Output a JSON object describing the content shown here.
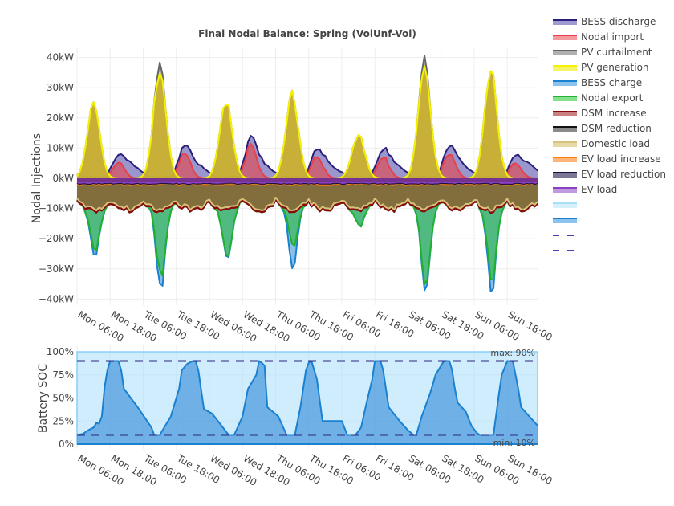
{
  "chart_data": [
    {
      "type": "area",
      "title": "Final Nodal Balance: Spring (VolUnf-Vol)",
      "xlabel": "",
      "ylabel": "Nodal Injections",
      "ylim": [
        -42,
        42
      ],
      "y_unit": "kW",
      "yticks": [
        -40,
        -30,
        -20,
        -10,
        0,
        10,
        20,
        30,
        40
      ],
      "ytick_labels": [
        "−40kW",
        "−30kW",
        "−20kW",
        "−10kW",
        "0kW",
        "10kW",
        "20kW",
        "30kW",
        "40kW"
      ],
      "x_start_hour": 0,
      "x_end_hour": 167,
      "x_step_hours": 1,
      "xticks_hours": [
        0,
        12,
        24,
        36,
        48,
        60,
        72,
        84,
        96,
        108,
        120,
        132,
        144,
        156
      ],
      "xtick_labels": [
        "Mon 06:00",
        "Mon 18:00",
        "Tue 06:00",
        "Tue 18:00",
        "Wed 06:00",
        "Wed 18:00",
        "Thu 06:00",
        "Thu 18:00",
        "Fri 06:00",
        "Fri 18:00",
        "Sat 06:00",
        "Sat 18:00",
        "Sun 06:00",
        "Sun 18:00"
      ],
      "grid": true,
      "legend_position": "right",
      "day_profile": {
        "pv_peaks_kW": [
          24.5,
          35.5,
          25.5,
          27.5,
          14.5,
          36.0,
          36.0
        ],
        "pv_curtail_peaks_kW": [
          0,
          39.0,
          0,
          0,
          0,
          39.5,
          0
        ],
        "export_troughs_kW": [
          -22,
          -31,
          -25,
          -20,
          -14,
          -34,
          -32
        ],
        "bess_charge_troughs_kW": [
          -24,
          -35.5,
          -25.5,
          -28,
          -12.5,
          -36,
          -36
        ],
        "domestic_load_troughs_kW": [
          -9,
          -10,
          -8,
          -8,
          -9,
          -10,
          -10
        ],
        "evening_import_kW": [
          5.5,
          8.5,
          10.5,
          7.0,
          7.0,
          8.0,
          5.0
        ]
      },
      "series": [
        {
          "name": "BESS discharge",
          "color": "#2a1f7a",
          "fill": "rgba(120,115,190,0.75)",
          "side": "pos"
        },
        {
          "name": "Nodal import",
          "color": "#e8404a",
          "fill": "rgba(220,80,90,0.7)",
          "side": "pos"
        },
        {
          "name": "PV curtailment",
          "color": "#666666",
          "fill": "rgba(150,150,150,0.75)",
          "side": "pos"
        },
        {
          "name": "PV generation",
          "color": "#f5f200",
          "fill": "rgba(200,175,50,0.95)",
          "side": "pos"
        },
        {
          "name": "BESS charge",
          "color": "#1a80d0",
          "fill": "rgba(110,175,230,0.8)",
          "side": "neg"
        },
        {
          "name": "Nodal export",
          "color": "#22b030",
          "fill": "rgba(70,185,110,0.85)",
          "side": "neg"
        },
        {
          "name": "DSM increase",
          "color": "#8a0a0a",
          "fill": "rgba(160,60,60,0.75)",
          "side": "neg"
        },
        {
          "name": "DSM reduction",
          "color": "#111111",
          "fill": "rgba(60,60,60,0.8)",
          "side": "neg"
        },
        {
          "name": "Domestic load",
          "color": "#d6c27a",
          "fill": "rgba(130,112,60,0.95)",
          "side": "neg"
        },
        {
          "name": "EV load increase",
          "color": "#ff7f0e",
          "fill": "rgba(255,150,60,0.7)",
          "side": "neg"
        },
        {
          "name": "EV load reduction",
          "color": "#1a1040",
          "fill": "rgba(60,50,90,0.8)",
          "side": "neg"
        },
        {
          "name": "EV load",
          "color": "#8a40c0",
          "fill": "rgba(120,50,150,0.9)",
          "side": "neg"
        }
      ]
    },
    {
      "type": "area",
      "title": "",
      "xlabel": "",
      "ylabel": "Battery SOC",
      "ylim": [
        0,
        100
      ],
      "yticks": [
        0,
        25,
        50,
        75,
        100
      ],
      "ytick_labels": [
        "0%",
        "25%",
        "50%",
        "75%",
        "100%"
      ],
      "xtick_labels": [
        "Mon 06:00",
        "Mon 18:00",
        "Tue 06:00",
        "Tue 18:00",
        "Wed 06:00",
        "Wed 18:00",
        "Thu 06:00",
        "Thu 18:00",
        "Fri 06:00",
        "Fri 18:00",
        "Sat 06:00",
        "Sat 18:00",
        "Sun 06:00",
        "Sun 18:00"
      ],
      "xticks_hours": [
        0,
        12,
        24,
        36,
        48,
        60,
        72,
        84,
        96,
        108,
        120,
        132,
        144,
        156
      ],
      "grid": true,
      "soc_series": {
        "name": "Battery SOC",
        "color": "#1a80d0",
        "points": [
          [
            0,
            10
          ],
          [
            2,
            11
          ],
          [
            4,
            15
          ],
          [
            6,
            18
          ],
          [
            7,
            23
          ],
          [
            8,
            22
          ],
          [
            9,
            30
          ],
          [
            10,
            62
          ],
          [
            11,
            80
          ],
          [
            12,
            90
          ],
          [
            15,
            90
          ],
          [
            16,
            80
          ],
          [
            17,
            60
          ],
          [
            22,
            40
          ],
          [
            27,
            18
          ],
          [
            28,
            10
          ],
          [
            30,
            10
          ],
          [
            34,
            30
          ],
          [
            37,
            60
          ],
          [
            38,
            80
          ],
          [
            40,
            87
          ],
          [
            42,
            90
          ],
          [
            43,
            90
          ],
          [
            44,
            80
          ],
          [
            46,
            38
          ],
          [
            49,
            33
          ],
          [
            55,
            10
          ],
          [
            57,
            10
          ],
          [
            60,
            30
          ],
          [
            62,
            60
          ],
          [
            65,
            75
          ],
          [
            66,
            90
          ],
          [
            67,
            88
          ],
          [
            68,
            85
          ],
          [
            69,
            40
          ],
          [
            73,
            30
          ],
          [
            76,
            10
          ],
          [
            79,
            10
          ],
          [
            81,
            40
          ],
          [
            83,
            80
          ],
          [
            84,
            88
          ],
          [
            85,
            90
          ],
          [
            86,
            80
          ],
          [
            87,
            70
          ],
          [
            89,
            25
          ],
          [
            96,
            25
          ],
          [
            98,
            10
          ],
          [
            101,
            10
          ],
          [
            103,
            18
          ],
          [
            105,
            45
          ],
          [
            107,
            70
          ],
          [
            108,
            90
          ],
          [
            110,
            90
          ],
          [
            111,
            80
          ],
          [
            113,
            40
          ],
          [
            117,
            25
          ],
          [
            120,
            15
          ],
          [
            122,
            10
          ],
          [
            123,
            10
          ],
          [
            125,
            30
          ],
          [
            128,
            55
          ],
          [
            130,
            75
          ],
          [
            132,
            85
          ],
          [
            133,
            90
          ],
          [
            135,
            90
          ],
          [
            136,
            80
          ],
          [
            137,
            60
          ],
          [
            138,
            45
          ],
          [
            141,
            35
          ],
          [
            143,
            20
          ],
          [
            145,
            12
          ],
          [
            146,
            10
          ],
          [
            151,
            10
          ],
          [
            153,
            55
          ],
          [
            154,
            75
          ],
          [
            156,
            90
          ],
          [
            158,
            90
          ],
          [
            159,
            75
          ],
          [
            160,
            60
          ],
          [
            161,
            40
          ],
          [
            164,
            30
          ],
          [
            167,
            20
          ]
        ]
      },
      "max_line": {
        "value": 90,
        "label": "max: 90%",
        "color": "#2e2580"
      },
      "min_line": {
        "value": 10,
        "label": "min: 10%",
        "color": "#2e2580"
      },
      "capacity_band": {
        "value": 100,
        "fill": "rgba(160,220,250,0.5)",
        "color": "#87cefa"
      }
    }
  ],
  "legend": {
    "items": [
      {
        "label": "BESS discharge",
        "line": "#2a1f7a",
        "fill": "#9e9ad2"
      },
      {
        "label": "Nodal import",
        "line": "#e8404a",
        "fill": "#f39a9e"
      },
      {
        "label": "PV curtailment",
        "line": "#666666",
        "fill": "#b0b0b0"
      },
      {
        "label": "PV generation",
        "line": "#f5f200",
        "fill": "#f8f46a"
      },
      {
        "label": "BESS charge",
        "line": "#1a80d0",
        "fill": "#8cc3ee"
      },
      {
        "label": "Nodal export",
        "line": "#22b030",
        "fill": "#86e08c"
      },
      {
        "label": "DSM increase",
        "line": "#8a0a0a",
        "fill": "#c98080"
      },
      {
        "label": "DSM reduction",
        "line": "#111111",
        "fill": "#8a8a8a"
      },
      {
        "label": "Domestic load",
        "line": "#d6c27a",
        "fill": "#e6d9a6"
      },
      {
        "label": "EV load increase",
        "line": "#ff7f0e",
        "fill": "#ffb47a"
      },
      {
        "label": "EV load reduction",
        "line": "#1a1040",
        "fill": "#7d7795"
      },
      {
        "label": "EV load",
        "line": "#8a40c0",
        "fill": "#c09ae0"
      },
      {
        "label": "",
        "line": "#a8def8",
        "fill": "#d6f0fc",
        "kind": "band"
      },
      {
        "label": "",
        "line": "#1a80d0",
        "fill": "#8cc3ee",
        "kind": "band"
      },
      {
        "label": "",
        "line": "#4a3ea8",
        "kind": "dash"
      },
      {
        "label": "",
        "line": "#4a3ea8",
        "kind": "dash"
      }
    ]
  }
}
